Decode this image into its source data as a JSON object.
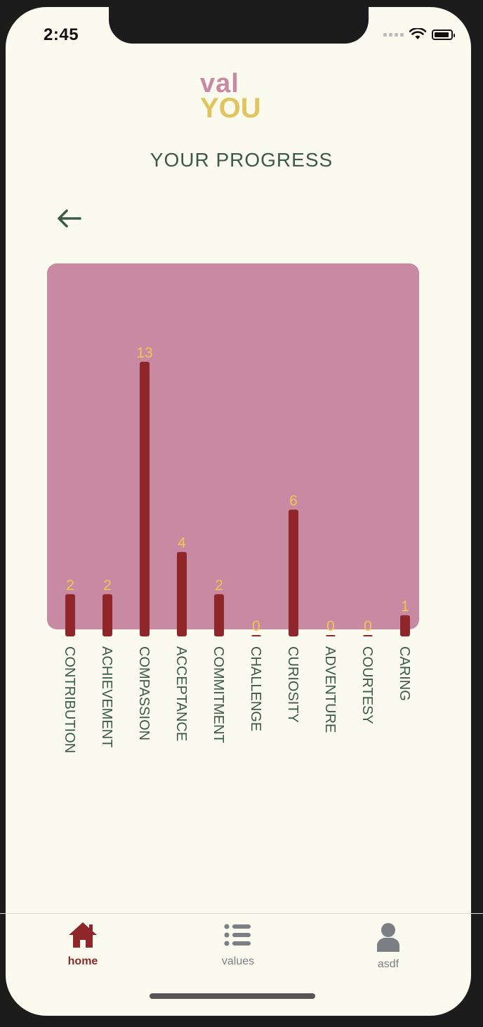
{
  "status_bar": {
    "time": "2:45"
  },
  "logo": {
    "top": "val",
    "bottom": "YOU"
  },
  "page_title": "YOUR PROGRESS",
  "colors": {
    "background": "#fafaee",
    "card": "#c889a3",
    "bar": "#8f2629",
    "bar_label": "#f2c550",
    "text": "#3d5a48",
    "active_tab": "#8f2629",
    "inactive_tab": "#7b7f84"
  },
  "icons": {
    "back": "arrow-left-icon",
    "home": "home-icon",
    "values": "list-icon",
    "profile": "person-icon"
  },
  "chart_data": {
    "type": "bar",
    "categories": [
      "CONTRIBUTION",
      "ACHIEVEMENT",
      "COMPASSION",
      "ACCEPTANCE",
      "COMMITMENT",
      "CHALLENGE",
      "CURIOSITY",
      "ADVENTURE",
      "COURTESY",
      "CARING"
    ],
    "values": [
      2,
      2,
      13,
      4,
      2,
      0,
      6,
      0,
      0,
      1
    ],
    "ylim": [
      0,
      13
    ],
    "grid": false
  },
  "tabbar": {
    "tabs": [
      {
        "label": "home"
      },
      {
        "label": "values"
      },
      {
        "label": "asdf"
      }
    ]
  }
}
